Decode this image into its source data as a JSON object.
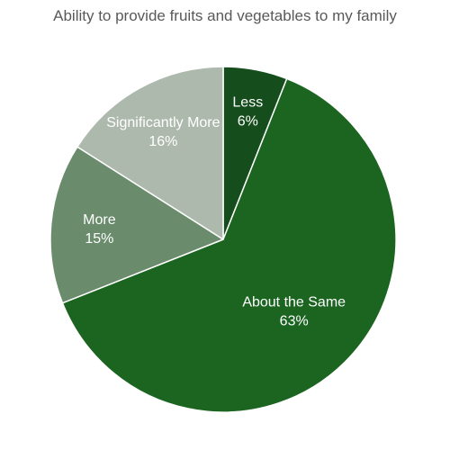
{
  "chart_data": {
    "type": "pie",
    "title": "Ability to provide fruits and vegetables to my family",
    "slices": [
      {
        "label": "Less",
        "value": 6,
        "value_label": "6%",
        "color": "#154d1c"
      },
      {
        "label": "About the Same",
        "value": 63,
        "value_label": "63%",
        "color": "#1b6521"
      },
      {
        "label": "More",
        "value": 15,
        "value_label": "15%",
        "color": "#6a8b6c"
      },
      {
        "label": "Significantly More",
        "value": 16,
        "value_label": "16%",
        "color": "#aeb9ad"
      }
    ],
    "start_angle": "12 o'clock",
    "direction": "clockwise",
    "legend": "none",
    "slice_border_color": "#ffffff"
  }
}
